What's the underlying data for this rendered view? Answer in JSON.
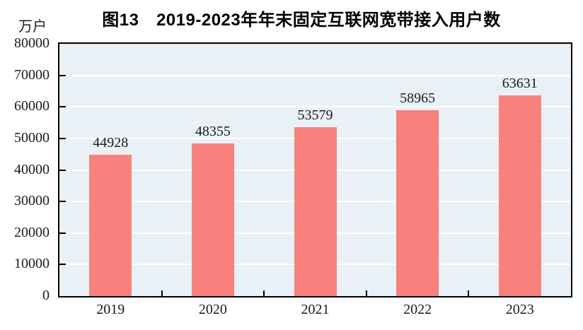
{
  "title": "图13　2019-2023年年末固定互联网宽带接入用户数",
  "unit_label": "万户",
  "chart_data": {
    "type": "bar",
    "title": "图13　2019-2023年年末固定互联网宽带接入用户数",
    "ylabel": "万户",
    "xlabel": "",
    "categories": [
      "2019",
      "2020",
      "2021",
      "2022",
      "2023"
    ],
    "values": [
      44928,
      48355,
      53579,
      58965,
      63631
    ],
    "value_labels_shown": true,
    "ylim": [
      0,
      80000
    ],
    "ytick_step": 10000,
    "ytick_labels": [
      "0",
      "10000",
      "20000",
      "30000",
      "40000",
      "50000",
      "60000",
      "70000",
      "80000"
    ],
    "grid": "horizontal-on",
    "legend_position": "none",
    "colors": {
      "bar_fill": "#F8817E",
      "plot_background": "#E9F1F6",
      "gridline": "#FFFFFF",
      "axis_border": "#000000",
      "text": "#1A1A1A",
      "page_background": "#FFFFFF"
    }
  }
}
